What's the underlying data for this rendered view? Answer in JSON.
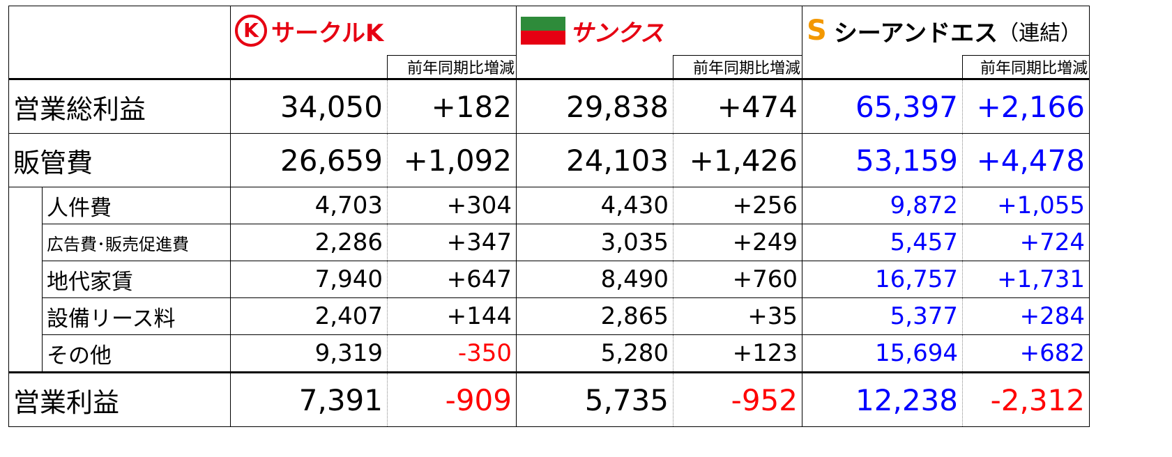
{
  "header": {
    "brands": [
      {
        "name": "サークルK"
      },
      {
        "name": "サンクス"
      },
      {
        "name": "シーアンドエス",
        "note": "（連結）"
      }
    ],
    "diff_label": "前年同期比増減"
  },
  "rows": [
    {
      "label": "営業総利益",
      "values": [
        "34,050",
        "+182",
        "29,838",
        "+474",
        "65,397",
        "+2,166"
      ]
    },
    {
      "label": "販管費",
      "values": [
        "26,659",
        "+1,092",
        "24,103",
        "+1,426",
        "53,159",
        "+4,478"
      ],
      "breakdown": [
        {
          "label": "人件費",
          "values": [
            "4,703",
            "+304",
            "4,430",
            "+256",
            "9,872",
            "+1,055"
          ]
        },
        {
          "label": "広告費･販売促進費",
          "values": [
            "2,286",
            "+347",
            "3,035",
            "+249",
            "5,457",
            "+724"
          ]
        },
        {
          "label": "地代家賃",
          "values": [
            "7,940",
            "+647",
            "8,490",
            "+760",
            "16,757",
            "+1,731"
          ]
        },
        {
          "label": "設備リース料",
          "values": [
            "2,407",
            "+144",
            "2,865",
            "+35",
            "5,377",
            "+284"
          ]
        },
        {
          "label": "その他",
          "values": [
            "9,319",
            "-350",
            "5,280",
            "+123",
            "15,694",
            "+682"
          ]
        }
      ]
    },
    {
      "label": "営業利益",
      "values": [
        "7,391",
        "-909",
        "5,735",
        "-952",
        "12,238",
        "-2,312"
      ]
    }
  ]
}
